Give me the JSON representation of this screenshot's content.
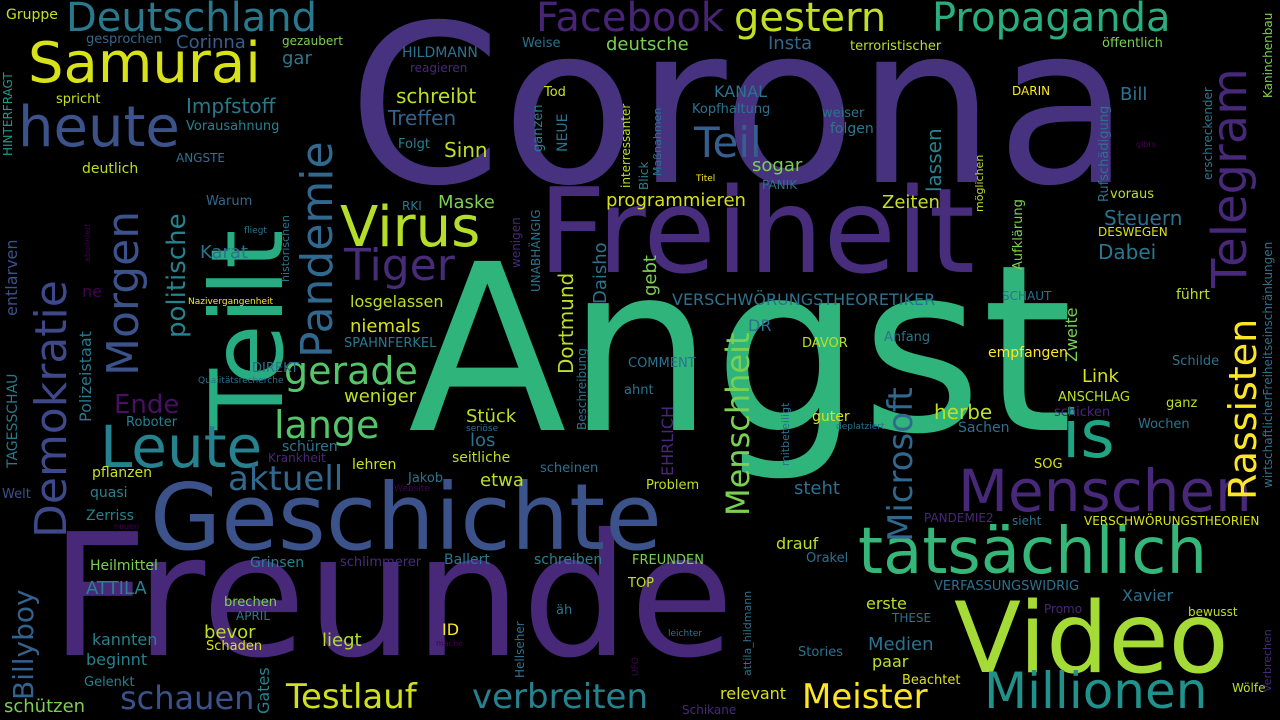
{
  "words": [
    {
      "text": "Corona",
      "color": "#46327e"
    },
    {
      "text": "Angst",
      "color": "#2fb47c"
    },
    {
      "text": "Freunde",
      "color": "#482878"
    },
    {
      "text": "Freiheit",
      "color": "#472d7b"
    },
    {
      "text": "Teilt",
      "color": "#27ad81"
    },
    {
      "text": "Geschichte",
      "color": "#3b528b"
    },
    {
      "text": "Video",
      "color": "#a5db36"
    },
    {
      "text": "tatsächlich",
      "color": "#35b779"
    },
    {
      "text": "Millionen",
      "color": "#21918c"
    },
    {
      "text": "Menschen",
      "color": "#482878"
    },
    {
      "text": "Leute",
      "color": "#26828e"
    },
    {
      "text": "heute",
      "color": "#3b528b"
    },
    {
      "text": "Samurai",
      "color": "#d8e219"
    },
    {
      "text": "Deutschland",
      "color": "#2a788e"
    },
    {
      "text": "Propaganda",
      "color": "#29af7f"
    },
    {
      "text": "gestern",
      "color": "#c2df23"
    },
    {
      "text": "Facebook",
      "color": "#482475"
    },
    {
      "text": "Telegram",
      "color": "#482878"
    },
    {
      "text": "Rassisten",
      "color": "#fde725"
    },
    {
      "text": "is",
      "color": "#20a486"
    },
    {
      "text": "Demokratie",
      "color": "#3e4989"
    },
    {
      "text": "Morgen",
      "color": "#3b528b"
    },
    {
      "text": "Pandemie",
      "color": "#31688e"
    },
    {
      "text": "Virus",
      "color": "#b5de2b"
    },
    {
      "text": "Tiger",
      "color": "#472c7a"
    },
    {
      "text": "Teil",
      "color": "#355f8d"
    },
    {
      "text": "Menschheit",
      "color": "#7ad151"
    },
    {
      "text": "Microsoft",
      "color": "#31688e"
    },
    {
      "text": "Testlauf",
      "color": "#d0e11c"
    },
    {
      "text": "verbreiten",
      "color": "#26828e"
    },
    {
      "text": "Meister",
      "color": "#fde725"
    },
    {
      "text": "schauen",
      "color": "#3b528b"
    },
    {
      "text": "lange",
      "color": "#54c568"
    },
    {
      "text": "gerade",
      "color": "#54c568"
    },
    {
      "text": "aktuell",
      "color": "#31688e"
    },
    {
      "text": "politische",
      "color": "#26828e"
    },
    {
      "text": "Billyboy",
      "color": "#33638d"
    },
    {
      "text": "Ende",
      "color": "#471063"
    },
    {
      "text": "Impfstoff",
      "color": "#2a788e"
    },
    {
      "text": "Corinna",
      "color": "#355f8d"
    },
    {
      "text": "gar",
      "color": "#2a788e"
    },
    {
      "text": "Gruppe",
      "color": "#c8e020"
    },
    {
      "text": "gesprochen",
      "color": "#31688e"
    },
    {
      "text": "gezaubert",
      "color": "#7ad151"
    },
    {
      "text": "spricht",
      "color": "#c8e020"
    },
    {
      "text": "Vorausahnung",
      "color": "#26828e"
    },
    {
      "text": "HINTERFRAGT",
      "color": "#1f9a8a"
    },
    {
      "text": "deutlich",
      "color": "#bddf26"
    },
    {
      "text": "ANGSTE",
      "color": "#2c728e"
    },
    {
      "text": "Warum",
      "color": "#31688e"
    },
    {
      "text": "Karat",
      "color": "#2c728e"
    },
    {
      "text": "entlarven",
      "color": "#3b528b"
    },
    {
      "text": "ne",
      "color": "#440154"
    },
    {
      "text": "Polizeistaat",
      "color": "#2a788e"
    },
    {
      "text": "TAGESSCHAU",
      "color": "#2a788e"
    },
    {
      "text": "Roboter",
      "color": "#26828e"
    },
    {
      "text": "pflanzen",
      "color": "#c8e020"
    },
    {
      "text": "quasi",
      "color": "#26828e"
    },
    {
      "text": "Welt",
      "color": "#3b528b"
    },
    {
      "text": "Zerriss",
      "color": "#26828e"
    },
    {
      "text": "schützen",
      "color": "#7ad151"
    },
    {
      "text": "Gelenkt",
      "color": "#26828e"
    },
    {
      "text": "Heilmittel",
      "color": "#7ad151"
    },
    {
      "text": "ATTILA",
      "color": "#26828e"
    },
    {
      "text": "kannten",
      "color": "#26828e"
    },
    {
      "text": "beginnt",
      "color": "#26828e"
    },
    {
      "text": "bevor",
      "color": "#bddf26"
    },
    {
      "text": "APRIL",
      "color": "#2a788e"
    },
    {
      "text": "Schaden",
      "color": "#d8e219"
    },
    {
      "text": "brechen",
      "color": "#7ad151"
    },
    {
      "text": "Gates",
      "color": "#26828e"
    },
    {
      "text": "Grinsen",
      "color": "#26828e"
    },
    {
      "text": "schlimmerer",
      "color": "#472c7a"
    },
    {
      "text": "Ballert",
      "color": "#2a788e"
    },
    {
      "text": "schreiben",
      "color": "#26828e"
    },
    {
      "text": "FREUNDEN",
      "color": "#7ad151"
    },
    {
      "text": "TOP",
      "color": "#bddf26"
    },
    {
      "text": "ID",
      "color": "#fde725"
    },
    {
      "text": "liegt",
      "color": "#b5de2b"
    },
    {
      "text": "HILDMANN",
      "color": "#2c728e"
    },
    {
      "text": "reagieren",
      "color": "#482878"
    },
    {
      "text": "Weise",
      "color": "#2c728e"
    },
    {
      "text": "deutsche",
      "color": "#7ad151"
    },
    {
      "text": "Insta",
      "color": "#31688e"
    },
    {
      "text": "schreibt",
      "color": "#bddf26"
    },
    {
      "text": "Treffen",
      "color": "#33638d"
    },
    {
      "text": "Tod",
      "color": "#c8e020"
    },
    {
      "text": "NEUE",
      "color": "#2c728e"
    },
    {
      "text": "Sinn",
      "color": "#bddf26"
    },
    {
      "text": "Folgt",
      "color": "#26828e"
    },
    {
      "text": "ganzen",
      "color": "#26828e"
    },
    {
      "text": "KANAL",
      "color": "#2c728e"
    },
    {
      "text": "Kopfhaltung",
      "color": "#2c728e"
    },
    {
      "text": "sogar",
      "color": "#7ad151"
    },
    {
      "text": "weiser",
      "color": "#2c728e"
    },
    {
      "text": "folgen",
      "color": "#2a788e"
    },
    {
      "text": "Bill",
      "color": "#2c728e"
    },
    {
      "text": "DARIN",
      "color": "#fde725"
    },
    {
      "text": "terroristischer",
      "color": "#bddf26"
    },
    {
      "text": "öffentlich",
      "color": "#7ad151"
    },
    {
      "text": "Kaninchenbau",
      "color": "#7ad151"
    },
    {
      "text": "interressanter",
      "color": "#bddf26"
    },
    {
      "text": "Blick",
      "color": "#26828e"
    },
    {
      "text": "Maßnahmen",
      "color": "#2a788e"
    },
    {
      "text": "PANIK",
      "color": "#2c728e"
    },
    {
      "text": "Titel",
      "color": "#fde725"
    },
    {
      "text": "programmieren",
      "color": "#d8e219"
    },
    {
      "text": "lassen",
      "color": "#26828e"
    },
    {
      "text": "Zeiten",
      "color": "#c8e020"
    },
    {
      "text": "möglichen",
      "color": "#bddf26"
    },
    {
      "text": "Aufklärung",
      "color": "#7ad151"
    },
    {
      "text": "Rufschädigung",
      "color": "#2c728e"
    },
    {
      "text": "erschreckender",
      "color": "#2a788e"
    },
    {
      "text": "gibts",
      "color": "#440154"
    },
    {
      "text": "wirtschaftlicherFreiheitseinschränkungen",
      "color": "#2c728e"
    },
    {
      "text": "voraus",
      "color": "#bddf26"
    },
    {
      "text": "Steuern",
      "color": "#2c728e"
    },
    {
      "text": "DESWEGEN",
      "color": "#d8e219"
    },
    {
      "text": "Dabei",
      "color": "#2a788e"
    },
    {
      "text": "Maske",
      "color": "#7ad151"
    },
    {
      "text": "RKI",
      "color": "#2a788e"
    },
    {
      "text": "UNABHÄNGIG",
      "color": "#2c728e"
    },
    {
      "text": "wenigen",
      "color": "#482878"
    },
    {
      "text": "Daisho",
      "color": "#2c728e"
    },
    {
      "text": "Dortmund",
      "color": "#bddf26"
    },
    {
      "text": "gebt",
      "color": "#7ad151"
    },
    {
      "text": "VERSCHWÖRUNGSTHEORETIKER",
      "color": "#2c728e"
    },
    {
      "text": "SCHAUT",
      "color": "#2c728e"
    },
    {
      "text": "führt",
      "color": "#bddf26"
    },
    {
      "text": "Zweite",
      "color": "#7ad151"
    },
    {
      "text": "losgelassen",
      "color": "#bddf26"
    },
    {
      "text": "niemals",
      "color": "#d8e219"
    },
    {
      "text": "SPAHNFERKEL",
      "color": "#2a788e"
    },
    {
      "text": "DIREKT",
      "color": "#2c728e"
    },
    {
      "text": "Qualitätsrecherche",
      "color": "#2c728e"
    },
    {
      "text": "weniger",
      "color": "#bddf26"
    },
    {
      "text": "Stück",
      "color": "#bddf26"
    },
    {
      "text": "los",
      "color": "#2c728e"
    },
    {
      "text": "seitliche",
      "color": "#bddf26"
    },
    {
      "text": "etwa",
      "color": "#bddf26"
    },
    {
      "text": "schüren",
      "color": "#2a788e"
    },
    {
      "text": "Krankheit",
      "color": "#482878"
    },
    {
      "text": "lehren",
      "color": "#c8e020"
    },
    {
      "text": "seriöse",
      "color": "#2c728e"
    },
    {
      "text": "Jakob",
      "color": "#2c728e"
    },
    {
      "text": "Website",
      "color": "#440154"
    },
    {
      "text": "COMMENT",
      "color": "#2c728e"
    },
    {
      "text": "ahnt",
      "color": "#2c728e"
    },
    {
      "text": "EHRLICH",
      "color": "#482878"
    },
    {
      "text": "Beschreibung",
      "color": "#2c728e"
    },
    {
      "text": "scheinen",
      "color": "#2c728e"
    },
    {
      "text": "Problem",
      "color": "#bddf26"
    },
    {
      "text": "DR",
      "color": "#2c728e"
    },
    {
      "text": "DAVOR",
      "color": "#bddf26"
    },
    {
      "text": "Anfang",
      "color": "#2c728e"
    },
    {
      "text": "empfangen",
      "color": "#fde725"
    },
    {
      "text": "Link",
      "color": "#d8e219"
    },
    {
      "text": "herbe",
      "color": "#bddf26"
    },
    {
      "text": "ANSCHLAG",
      "color": "#bddf26"
    },
    {
      "text": "schicken",
      "color": "#482878"
    },
    {
      "text": "guter",
      "color": "#d8e219"
    },
    {
      "text": "deplatziert",
      "color": "#2c728e"
    },
    {
      "text": "mitbeteiligt",
      "color": "#2c728e"
    },
    {
      "text": "Sachen",
      "color": "#2c728e"
    },
    {
      "text": "Wochen",
      "color": "#2c728e"
    },
    {
      "text": "Schilde",
      "color": "#2c728e"
    },
    {
      "text": "ganz",
      "color": "#bddf26"
    },
    {
      "text": "SOG",
      "color": "#d8e219"
    },
    {
      "text": "steht",
      "color": "#2c728e"
    },
    {
      "text": "PANDEMIE2",
      "color": "#482878"
    },
    {
      "text": "sieht",
      "color": "#2c728e"
    },
    {
      "text": "VERSCHWÖRUNGSTHEORIEN",
      "color": "#d8e219"
    },
    {
      "text": "drauf",
      "color": "#bddf26"
    },
    {
      "text": "Orakel",
      "color": "#2c728e"
    },
    {
      "text": "VERFASSUNGSWIDRIG",
      "color": "#2c728e"
    },
    {
      "text": "erste",
      "color": "#bddf26"
    },
    {
      "text": "Xavier",
      "color": "#2c728e"
    },
    {
      "text": "Promo",
      "color": "#482878"
    },
    {
      "text": "bewusst",
      "color": "#bddf26"
    },
    {
      "text": "THESE",
      "color": "#2c728e"
    },
    {
      "text": "Medien",
      "color": "#2c728e"
    },
    {
      "text": "paar",
      "color": "#bddf26"
    },
    {
      "text": "Stories",
      "color": "#2c728e"
    },
    {
      "text": "Beachtet",
      "color": "#d8e219"
    },
    {
      "text": "Wölfe",
      "color": "#bddf26"
    },
    {
      "text": "Verbrechen",
      "color": "#482878"
    },
    {
      "text": "Schikane",
      "color": "#482878"
    },
    {
      "text": "relevant",
      "color": "#d8e219"
    },
    {
      "text": "attila_hildmann",
      "color": "#2c728e"
    },
    {
      "text": "Hellseher",
      "color": "#2c728e"
    },
    {
      "text": "UFO",
      "color": "#440154"
    },
    {
      "text": "leichter",
      "color": "#2c728e"
    },
    {
      "text": "äh",
      "color": "#2c728e"
    },
    {
      "text": "mache",
      "color": "#440154"
    },
    {
      "text": "neuen",
      "color": "#440154"
    },
    {
      "text": "abonniert",
      "color": "#440154"
    },
    {
      "text": "fliegt",
      "color": "#2c728e"
    },
    {
      "text": "historischen",
      "color": "#2c728e"
    },
    {
      "text": "Nazivergangenheit",
      "color": "#fde725"
    }
  ]
}
